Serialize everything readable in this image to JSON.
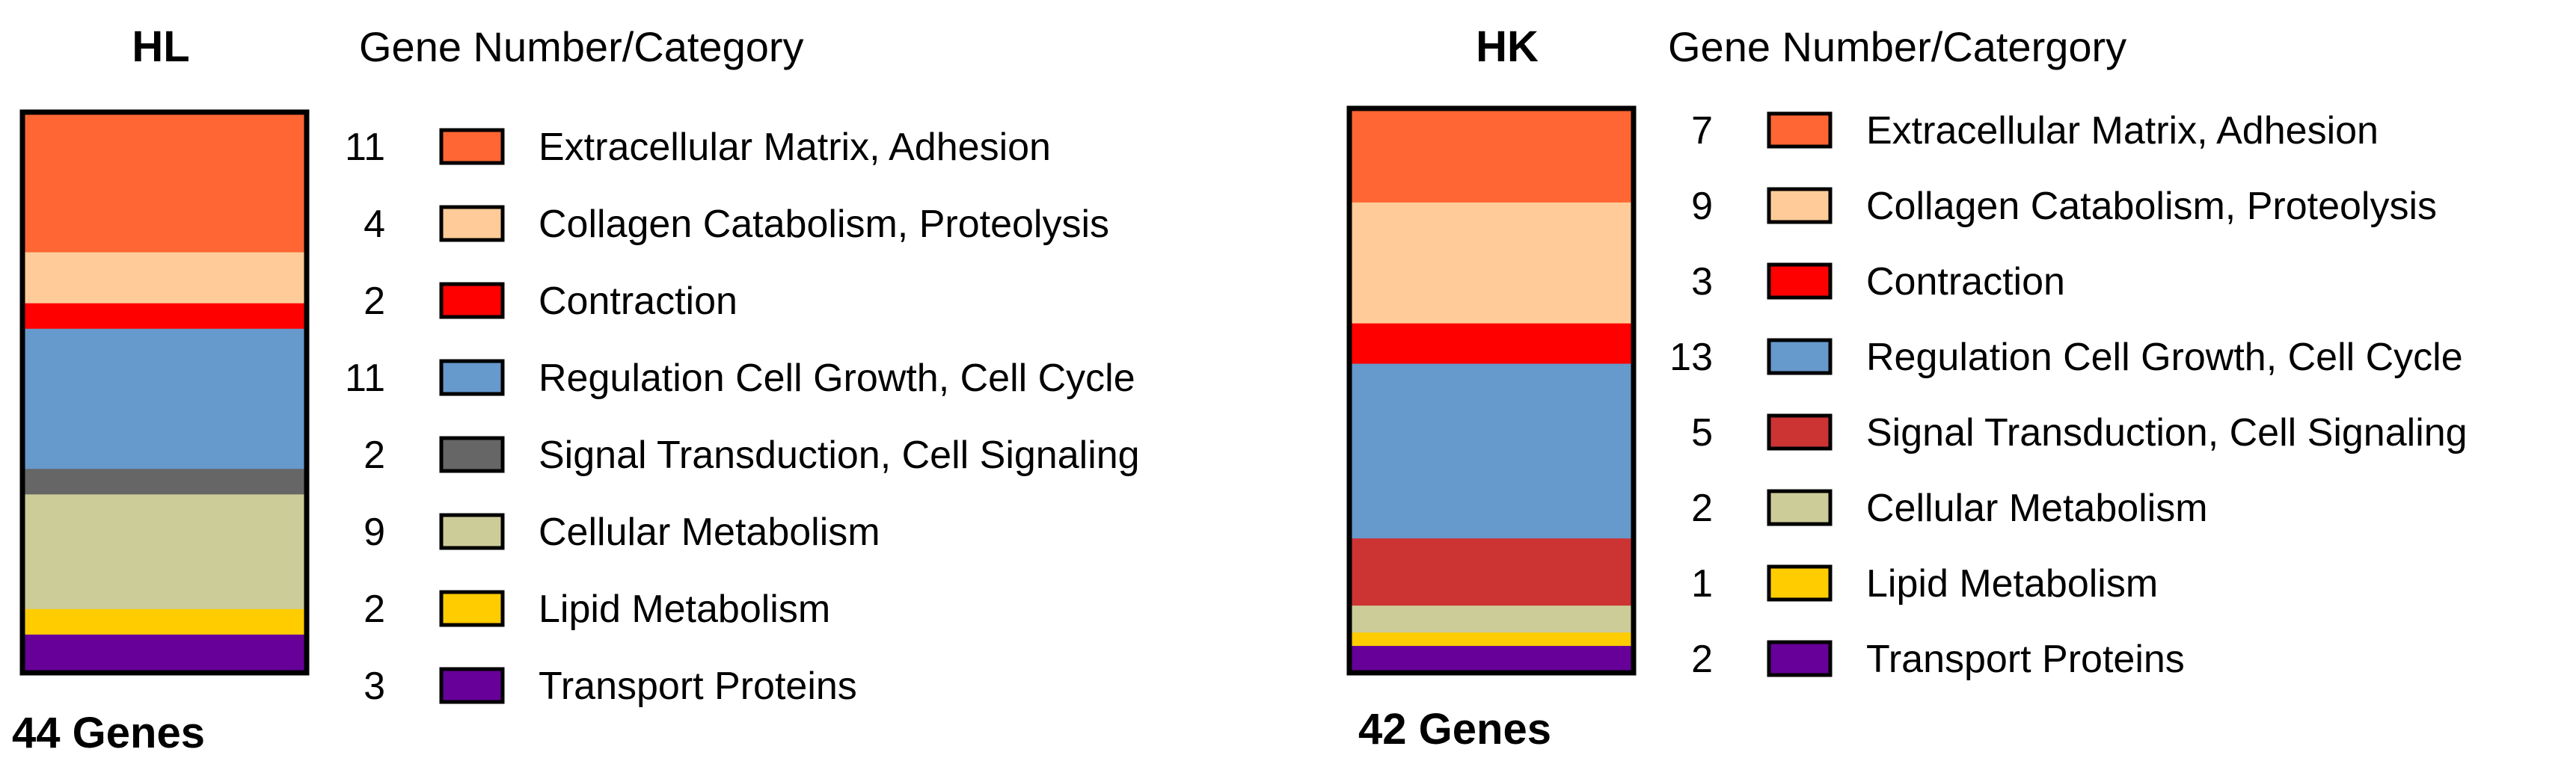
{
  "chart_data": [
    {
      "type": "bar",
      "orientation": "vertical",
      "stacked": true,
      "title": "HL",
      "legend_title": "Gene Number/Category",
      "total_label": "44 Genes",
      "total": 44,
      "categories": [
        {
          "name": "Extracellular Matrix, Adhesion",
          "count": 11,
          "label": "11",
          "color": "#FF6633"
        },
        {
          "name": "Collagen Catabolism, Proteolysis",
          "count": 4,
          "label": "4",
          "color": "#FFCC99"
        },
        {
          "name": "Contraction",
          "count": 2,
          "label": "2",
          "color": "#FF0000"
        },
        {
          "name": "Regulation Cell Growth, Cell Cycle",
          "count": 11,
          "label": "11",
          "color": "#6699CC"
        },
        {
          "name": "Signal Transduction, Cell Signaling",
          "count": 2,
          "label": "2",
          "color": "#666666"
        },
        {
          "name": "Cellular Metabolism",
          "count": 9,
          "label": "9",
          "color": "#CCCC99"
        },
        {
          "name": "Lipid Metabolism",
          "count": 2,
          "label": "2",
          "color": "#FFCC00"
        },
        {
          "name": "Transport Proteins",
          "count": 3,
          "label": "3",
          "color": "#660099"
        }
      ]
    },
    {
      "type": "bar",
      "orientation": "vertical",
      "stacked": true,
      "title": "HK",
      "legend_title": "Gene Number/Catergory",
      "total_label": "42 Genes",
      "total": 42,
      "categories": [
        {
          "name": "Extracellular Matrix, Adhesion",
          "count": 7,
          "label": "7",
          "color": "#FF6633"
        },
        {
          "name": "Collagen Catabolism, Proteolysis",
          "count": 9,
          "label": "9",
          "color": "#FFCC99"
        },
        {
          "name": "Contraction",
          "count": 3,
          "label": "3",
          "color": "#FF0000"
        },
        {
          "name": "Regulation Cell Growth, Cell Cycle",
          "count": 13,
          "label": "13",
          "color": "#6699CC"
        },
        {
          "name": "Signal Transduction, Cell Signaling",
          "count": 5,
          "label": "5",
          "color": "#CC3333"
        },
        {
          "name": "Cellular Metabolism",
          "count": 2,
          "label": "2",
          "color": "#CCCC99"
        },
        {
          "name": "Lipid Metabolism",
          "count": 1,
          "label": "1",
          "color": "#FFCC00"
        },
        {
          "name": "Transport Proteins",
          "count": 2,
          "label": "2",
          "color": "#660099"
        }
      ]
    }
  ]
}
